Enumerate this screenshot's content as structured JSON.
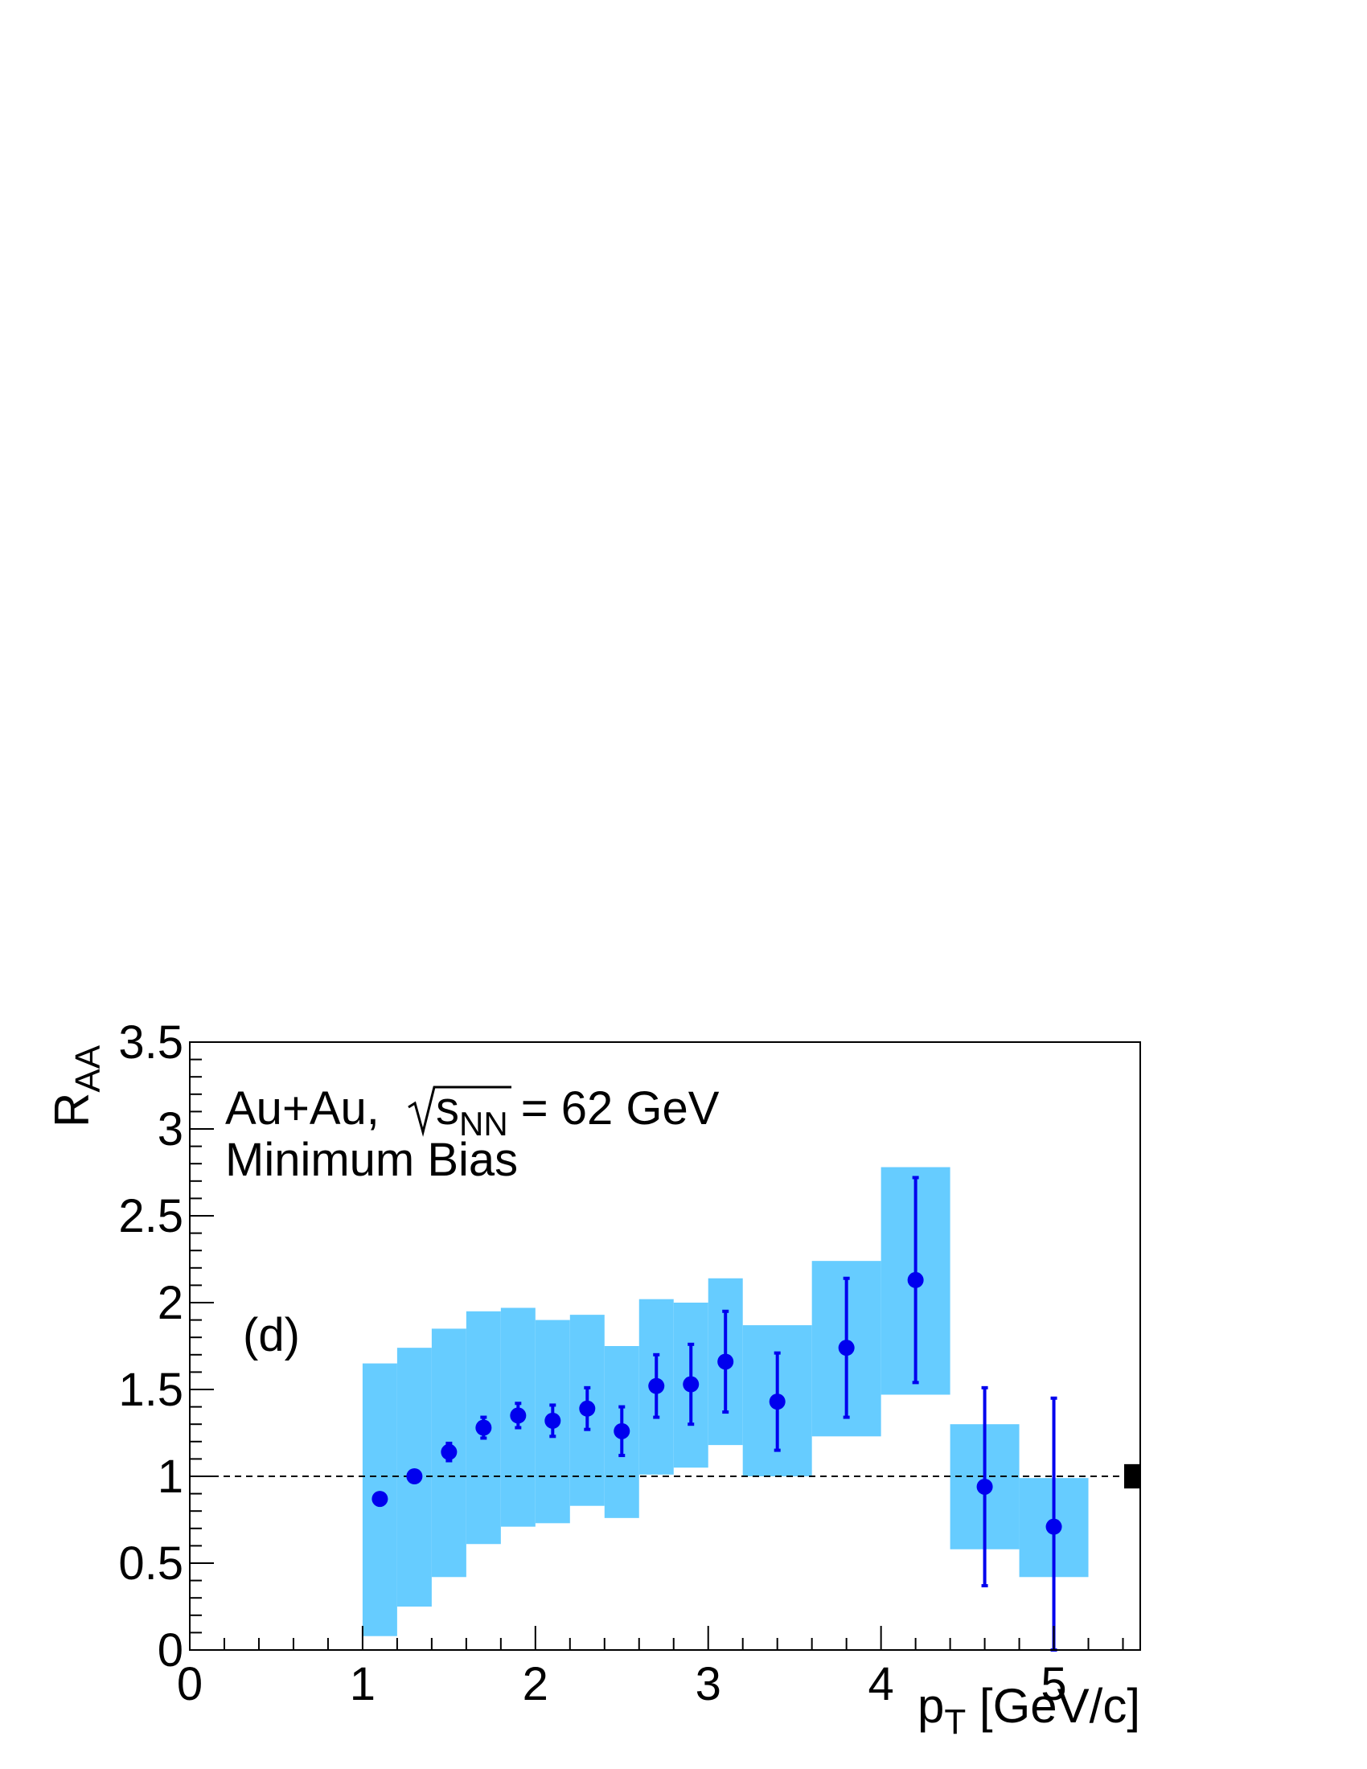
{
  "chart_data": {
    "type": "scatter",
    "panel_label": "(d)",
    "annotation_line1_prefix": "Au+Au, ",
    "annotation_line1_s": "s",
    "annotation_line1_sub": "NN",
    "annotation_line1_suffix": " = 62 GeV",
    "annotation_line2": "Minimum Bias",
    "xlabel_main": "p",
    "xlabel_sub": "T",
    "xlabel_unit": " [GeV/c]",
    "ylabel_main": "R",
    "ylabel_sub": "AA",
    "xlim": [
      0,
      5.5
    ],
    "ylim": [
      0,
      3.5
    ],
    "x_ticks": [
      0,
      1,
      2,
      3,
      4,
      5
    ],
    "x_tick_labels": [
      "0",
      "1",
      "2",
      "3",
      "4",
      "5"
    ],
    "y_ticks": [
      0,
      0.5,
      1,
      1.5,
      2,
      2.5,
      3,
      3.5
    ],
    "y_tick_labels": [
      "0",
      "0.5",
      "1",
      "1.5",
      "2",
      "2.5",
      "3",
      "3.5"
    ],
    "reference_line_y": 1,
    "normalization_box": {
      "y_low": 0.93,
      "y_high": 1.07
    },
    "points": [
      {
        "x": 1.1,
        "y": 0.87,
        "stat_err": 0.02,
        "sys_low": 0.08,
        "sys_high": 1.65,
        "bin_low": 1.0,
        "bin_high": 1.2
      },
      {
        "x": 1.3,
        "y": 1.0,
        "stat_err": 0.03,
        "sys_low": 0.25,
        "sys_high": 1.74,
        "bin_low": 1.2,
        "bin_high": 1.4
      },
      {
        "x": 1.5,
        "y": 1.14,
        "stat_err": 0.05,
        "sys_low": 0.42,
        "sys_high": 1.85,
        "bin_low": 1.4,
        "bin_high": 1.6
      },
      {
        "x": 1.7,
        "y": 1.28,
        "stat_err": 0.06,
        "sys_low": 0.61,
        "sys_high": 1.95,
        "bin_low": 1.6,
        "bin_high": 1.8
      },
      {
        "x": 1.9,
        "y": 1.35,
        "stat_err": 0.07,
        "sys_low": 0.71,
        "sys_high": 1.97,
        "bin_low": 1.8,
        "bin_high": 2.0
      },
      {
        "x": 2.1,
        "y": 1.32,
        "stat_err": 0.09,
        "sys_low": 0.73,
        "sys_high": 1.9,
        "bin_low": 2.0,
        "bin_high": 2.2
      },
      {
        "x": 2.3,
        "y": 1.39,
        "stat_err": 0.12,
        "sys_low": 0.83,
        "sys_high": 1.93,
        "bin_low": 2.2,
        "bin_high": 2.4
      },
      {
        "x": 2.5,
        "y": 1.26,
        "stat_err": 0.14,
        "sys_low": 0.76,
        "sys_high": 1.75,
        "bin_low": 2.4,
        "bin_high": 2.6
      },
      {
        "x": 2.7,
        "y": 1.52,
        "stat_err": 0.18,
        "sys_low": 1.01,
        "sys_high": 2.02,
        "bin_low": 2.6,
        "bin_high": 2.8
      },
      {
        "x": 2.9,
        "y": 1.53,
        "stat_err": 0.23,
        "sys_low": 1.05,
        "sys_high": 2.0,
        "bin_low": 2.8,
        "bin_high": 3.0
      },
      {
        "x": 3.1,
        "y": 1.66,
        "stat_err": 0.29,
        "sys_low": 1.18,
        "sys_high": 2.14,
        "bin_low": 3.0,
        "bin_high": 3.2
      },
      {
        "x": 3.4,
        "y": 1.43,
        "stat_err": 0.28,
        "sys_low": 1.0,
        "sys_high": 1.87,
        "bin_low": 3.2,
        "bin_high": 3.6
      },
      {
        "x": 3.8,
        "y": 1.74,
        "stat_err": 0.4,
        "sys_low": 1.23,
        "sys_high": 2.24,
        "bin_low": 3.6,
        "bin_high": 4.0
      },
      {
        "x": 4.2,
        "y": 2.13,
        "stat_err": 0.59,
        "sys_low": 1.47,
        "sys_high": 2.78,
        "bin_low": 4.0,
        "bin_high": 4.4
      },
      {
        "x": 4.6,
        "y": 0.94,
        "stat_err": 0.57,
        "sys_low": 0.58,
        "sys_high": 1.3,
        "bin_low": 4.4,
        "bin_high": 4.8
      },
      {
        "x": 5.0,
        "y": 0.71,
        "stat_err": 0.74,
        "sys_low": 0.42,
        "sys_high": 0.99,
        "bin_low": 4.8,
        "bin_high": 5.2
      }
    ],
    "colors": {
      "points": "#0000ee",
      "systematic_box": "#66ccff",
      "axis": "#000000",
      "normalization_box": "#000000"
    }
  }
}
